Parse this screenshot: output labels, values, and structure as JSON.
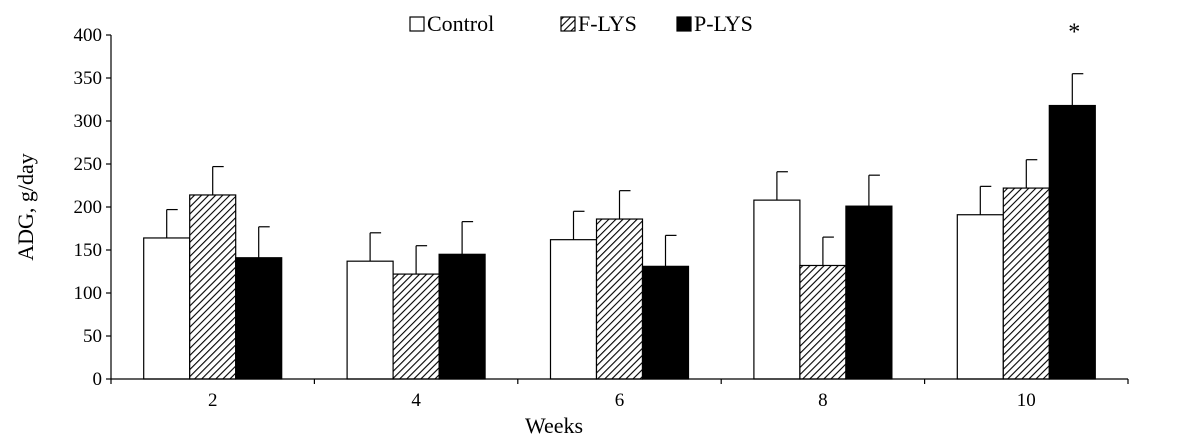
{
  "chart_data": {
    "type": "bar",
    "title": "",
    "xlabel": "Weeks",
    "ylabel": "ADG, g/day",
    "categories": [
      "2",
      "4",
      "6",
      "8",
      "10"
    ],
    "ylim": [
      0,
      400
    ],
    "yticks": [
      0,
      50,
      100,
      150,
      200,
      250,
      300,
      350,
      400
    ],
    "grid": false,
    "legend_position": "top-center",
    "series": [
      {
        "name": "Control",
        "values": [
          164,
          137,
          162,
          208,
          191
        ],
        "errors": [
          33,
          33,
          33,
          33,
          33
        ],
        "fill": "#ffffff"
      },
      {
        "name": "F-LYS",
        "values": [
          214,
          122,
          186,
          132,
          222
        ],
        "errors": [
          33,
          33,
          33,
          33,
          33
        ],
        "fill": "hatch"
      },
      {
        "name": "P-LYS",
        "values": [
          141,
          145,
          131,
          201,
          318
        ],
        "errors": [
          36,
          38,
          36,
          36,
          37
        ],
        "fill": "#000000"
      }
    ],
    "annotations": [
      {
        "text": "*",
        "category": "10",
        "series": "P-LYS"
      }
    ]
  }
}
